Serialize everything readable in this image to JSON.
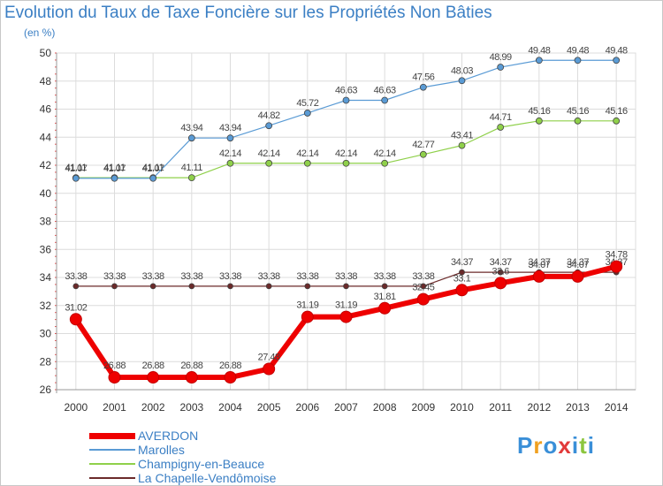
{
  "chart_data": {
    "type": "line",
    "title": "Evolution du Taux de Taxe Foncière sur les Propriétés Non Bâties",
    "subtitle": "(en %)",
    "xlabel": "",
    "ylabel": "",
    "ylim": [
      26,
      50
    ],
    "yticks": [
      26,
      28,
      30,
      32,
      34,
      36,
      38,
      40,
      42,
      44,
      46,
      48,
      50
    ],
    "grid": true,
    "legend_position": "bottom-left",
    "categories": [
      "2000",
      "2001",
      "2002",
      "2003",
      "2004",
      "2005",
      "2006",
      "2007",
      "2008",
      "2009",
      "2010",
      "2011",
      "2012",
      "2013",
      "2014"
    ],
    "series": [
      {
        "name": "AVERDON",
        "color": "#ee0000",
        "values": [
          31.02,
          26.88,
          26.88,
          26.88,
          26.88,
          27.48,
          31.19,
          31.19,
          31.81,
          32.45,
          33.1,
          33.6,
          34.07,
          34.07,
          34.78
        ],
        "labels": [
          "31.02",
          "26.88",
          "26.88",
          "26.88",
          "26.88",
          "27.48",
          "31.19",
          "31.19",
          "31.81",
          "32.45",
          "33.1",
          "33.6",
          "34.07",
          "34.07",
          "34.78"
        ]
      },
      {
        "name": "Marolles",
        "color": "#5a9bd5",
        "values": [
          41.07,
          41.07,
          41.07,
          43.94,
          43.94,
          44.82,
          45.72,
          46.63,
          46.63,
          47.56,
          48.03,
          48.99,
          49.48,
          49.48,
          49.48
        ],
        "labels": [
          "41.07",
          "41.07",
          "41.07",
          "43.94",
          "43.94",
          "44.82",
          "45.72",
          "46.63",
          "46.63",
          "47.56",
          "48.03",
          "48.99",
          "49.48",
          "49.48",
          "49.48"
        ]
      },
      {
        "name": "Champigny-en-Beauce",
        "color": "#8fd04a",
        "values": [
          41.11,
          41.11,
          41.11,
          41.11,
          42.14,
          42.14,
          42.14,
          42.14,
          42.14,
          42.77,
          43.41,
          44.71,
          45.16,
          45.16,
          45.16
        ],
        "labels": [
          "41.11",
          "41.11",
          "41.11",
          "41.11",
          "42.14",
          "42.14",
          "42.14",
          "42.14",
          "42.14",
          "42.77",
          "43.41",
          "44.71",
          "45.16",
          "45.16",
          "45.16"
        ]
      },
      {
        "name": "La Chapelle-Vendômoise",
        "color": "#6b2a2a",
        "values": [
          33.38,
          33.38,
          33.38,
          33.38,
          33.38,
          33.38,
          33.38,
          33.38,
          33.38,
          33.38,
          34.37,
          34.37,
          34.37,
          34.37,
          34.37
        ],
        "labels": [
          "33.38",
          "33.38",
          "33.38",
          "33.38",
          "33.38",
          "33.38",
          "33.38",
          "33.38",
          "33.38",
          "33.38",
          "34.37",
          "34.37",
          "34.37",
          "34.37",
          "34.37"
        ]
      }
    ]
  },
  "branding": {
    "letters": [
      "P",
      "r",
      "o",
      "x",
      "i",
      "t",
      "i"
    ],
    "colors": [
      "#3a8fd8",
      "#f0a020",
      "#3a8fd8",
      "#e23a3a",
      "#3a8fd8",
      "#8cc63f",
      "#3a8fd8"
    ]
  }
}
